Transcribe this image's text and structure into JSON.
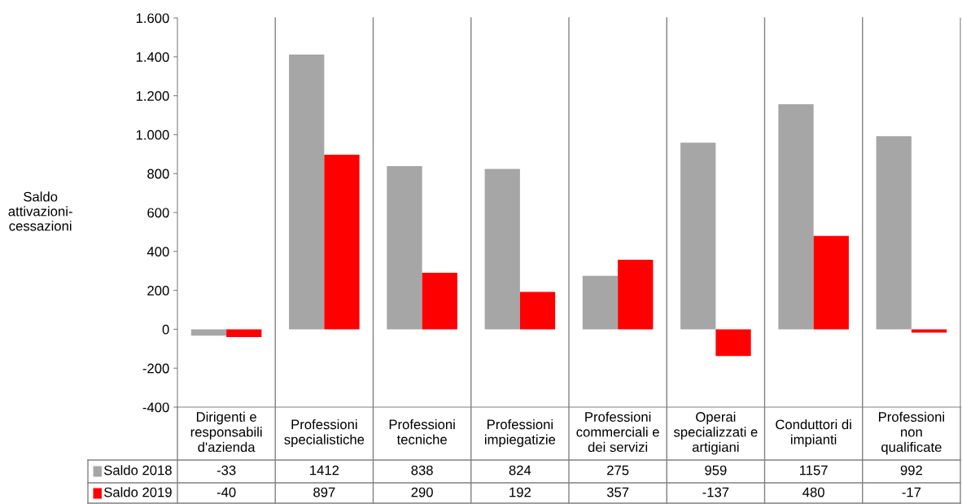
{
  "chart_data": {
    "type": "bar",
    "categories": [
      "Dirigenti e\nresponsabili\nd'azienda",
      "Professioni\nspecialistiche",
      "Professioni\ntecniche",
      "Professioni\nimpiegatizie",
      "Professioni\ncommerciali e\ndei servizi",
      "Operai\nspecializzati e\nartigiani",
      "Conduttori di\nimpianti",
      "Professioni\nnon\nqualificate"
    ],
    "series": [
      {
        "name": "Saldo 2018",
        "color": "#a6a6a6",
        "values": [
          -33,
          1412,
          838,
          824,
          275,
          959,
          1157,
          992
        ]
      },
      {
        "name": "Saldo 2019",
        "color": "#ff0000",
        "values": [
          -40,
          897,
          290,
          192,
          357,
          -137,
          480,
          -17
        ]
      }
    ],
    "ylabel": "Saldo\nattivazioni-\ncessazioni",
    "ylim": [
      -400,
      1600
    ],
    "yticks": [
      -400,
      -200,
      0,
      200,
      400,
      600,
      800,
      {
        "value": 1000,
        "label": "1.000"
      },
      {
        "value": 1200,
        "label": "1.200"
      },
      {
        "value": 1400,
        "label": "1.400"
      },
      {
        "value": 1600,
        "label": "1.600"
      }
    ],
    "data_labels": true,
    "legend": "bottom",
    "grid": false
  }
}
